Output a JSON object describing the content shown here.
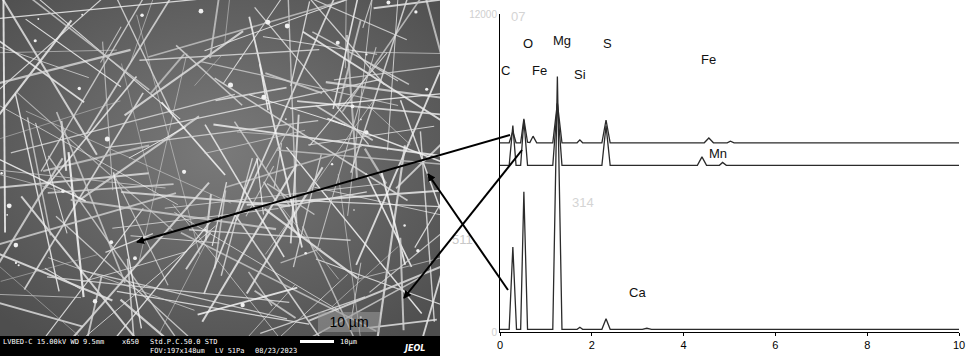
{
  "chart_data": {
    "type": "line",
    "xlim": [
      0,
      10
    ],
    "xticks": [
      0,
      2,
      4,
      6,
      8,
      10
    ],
    "ylim": [
      0,
      12000
    ],
    "yticks": [
      0,
      12000
    ],
    "grid": false,
    "color": "#2b2b2b",
    "series": [
      {
        "x": [
          0,
          0.2,
          0.28,
          0.35,
          0.45,
          0.52,
          0.6,
          0.65,
          0.72,
          0.8,
          1.15,
          1.25,
          1.35,
          1.68,
          1.74,
          1.8,
          2.22,
          2.31,
          2.4,
          4.45,
          4.55,
          4.65,
          4.95,
          5.02,
          5.1,
          10
        ],
        "values": [
          7140,
          7140,
          7570,
          7140,
          7140,
          8040,
          7160,
          7150,
          7390,
          7140,
          7140,
          8640,
          7140,
          7140,
          7250,
          7140,
          7140,
          8000,
          7140,
          7140,
          7320,
          7140,
          7140,
          7200,
          7140,
          7140
        ]
      },
      {
        "x": [
          0,
          0.2,
          0.28,
          0.35,
          0.45,
          0.52,
          0.6,
          1.15,
          1.25,
          1.35,
          2.22,
          2.31,
          2.4,
          4.3,
          4.4,
          4.5,
          4.78,
          4.85,
          4.93,
          10
        ],
        "values": [
          6290,
          6290,
          7790,
          6290,
          6290,
          8000,
          6290,
          6290,
          8610,
          6290,
          6290,
          7790,
          6290,
          6290,
          6610,
          6290,
          6290,
          6400,
          6290,
          6290
        ]
      },
      {
        "x": [
          0,
          0.2,
          0.28,
          0.36,
          0.45,
          0.52,
          0.6,
          1.15,
          1.25,
          1.35,
          1.68,
          1.74,
          1.8,
          2.22,
          2.31,
          2.4,
          3.1,
          3.2,
          3.3,
          10
        ],
        "values": [
          100,
          100,
          3210,
          100,
          100,
          5290,
          100,
          100,
          9640,
          100,
          100,
          180,
          100,
          100,
          500,
          100,
          100,
          140,
          100,
          100
        ]
      }
    ],
    "annotations": [
      {
        "text": "C",
        "x": 0.12,
        "y": 9850,
        "color": "#111111"
      },
      {
        "text": "O",
        "x": 0.6,
        "y": 10900,
        "color": "#111111"
      },
      {
        "text": "Fe",
        "x": 0.85,
        "y": 9850,
        "color": "#111111"
      },
      {
        "text": "Mg",
        "x": 1.35,
        "y": 11000,
        "color": "#111111"
      },
      {
        "text": "Si",
        "x": 1.75,
        "y": 9700,
        "color": "#111111"
      },
      {
        "text": "S",
        "x": 2.35,
        "y": 10900,
        "color": "#111111"
      },
      {
        "text": "Fe",
        "x": 4.55,
        "y": 10300,
        "color": "#111111"
      },
      {
        "text": "Mn",
        "x": 4.75,
        "y": 6750,
        "color": "#111111"
      },
      {
        "text": "Ca",
        "x": 3.0,
        "y": 1500,
        "color": "#111111"
      },
      {
        "text": "07",
        "x": 0.4,
        "y": 11900,
        "color": "#d4d4d4"
      },
      {
        "text": "511",
        "x": -0.82,
        "y": 3500,
        "color": "#c8c8c8"
      },
      {
        "text": "314",
        "x": 1.8,
        "y": 4900,
        "color": "#d4d4d4"
      }
    ]
  },
  "micrograph": {
    "info_bar": [
      "LVBED-C 15.00kV WD 9.5mm",
      "x650",
      "Std.P.C.50.0 STD",
      "FOV:197x148um",
      "LV 51Pa",
      "08/23/2023"
    ],
    "scale_bar": "10µm",
    "logo": "JEOL",
    "label": "10 µm"
  }
}
